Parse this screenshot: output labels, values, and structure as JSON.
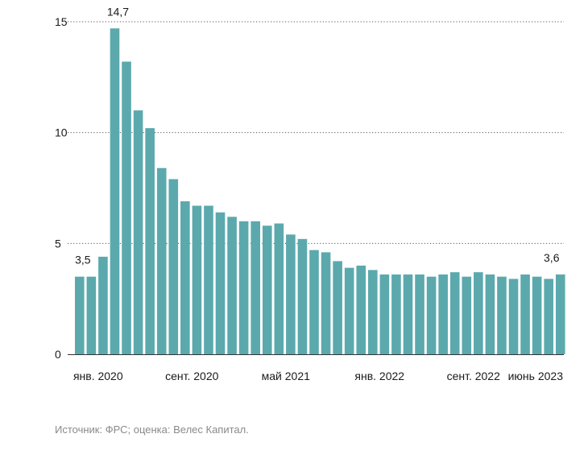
{
  "chart_data": {
    "type": "bar",
    "title": "",
    "xlabel": "",
    "ylabel": "",
    "ylim": [
      0,
      15
    ],
    "y_ticks": [
      0,
      5,
      10,
      15
    ],
    "y_tick_labels": [
      "0",
      "5",
      "10",
      "15"
    ],
    "gridlines": "dotted at 5, 10, 15",
    "x_tick_labels": [
      {
        "index": 0,
        "label": "янв. 2020"
      },
      {
        "index": 8,
        "label": "сент. 2020"
      },
      {
        "index": 16,
        "label": "май 2021"
      },
      {
        "index": 24,
        "label": "янв. 2022"
      },
      {
        "index": 32,
        "label": "сент. 2022"
      },
      {
        "index": 41,
        "label": "июнь 2023"
      }
    ],
    "categories": [
      "01.2020",
      "02.2020",
      "03.2020",
      "04.2020",
      "05.2020",
      "06.2020",
      "07.2020",
      "08.2020",
      "09.2020",
      "10.2020",
      "11.2020",
      "12.2020",
      "01.2021",
      "02.2021",
      "03.2021",
      "04.2021",
      "05.2021",
      "06.2021",
      "07.2021",
      "08.2021",
      "09.2021",
      "10.2021",
      "11.2021",
      "12.2021",
      "01.2022",
      "02.2022",
      "03.2022",
      "04.2022",
      "05.2022",
      "06.2022",
      "07.2022",
      "08.2022",
      "09.2022",
      "10.2022",
      "11.2022",
      "12.2022",
      "01.2023",
      "02.2023",
      "03.2023",
      "04.2023",
      "05.2023",
      "06.2023"
    ],
    "values": [
      3.5,
      3.5,
      4.4,
      14.7,
      13.2,
      11.0,
      10.2,
      8.4,
      7.9,
      6.9,
      6.7,
      6.7,
      6.4,
      6.2,
      6.0,
      6.0,
      5.8,
      5.9,
      5.4,
      5.2,
      4.7,
      4.6,
      4.2,
      3.9,
      4.0,
      3.8,
      3.6,
      3.6,
      3.6,
      3.6,
      3.5,
      3.6,
      3.7,
      3.5,
      3.7,
      3.6,
      3.5,
      3.4,
      3.6,
      3.5,
      3.4,
      3.6
    ],
    "data_labels": [
      {
        "index": 0,
        "text": "3,5"
      },
      {
        "index": 3,
        "text": "14,7"
      },
      {
        "index": 41,
        "text": "3,6"
      }
    ],
    "colors": {
      "bar": "#5ba9ad",
      "grid": "#555555",
      "axis": "#333333",
      "text": "#1a1a1a"
    }
  },
  "source_note": "Источник: ФРС; оценка: Велес Капитал."
}
